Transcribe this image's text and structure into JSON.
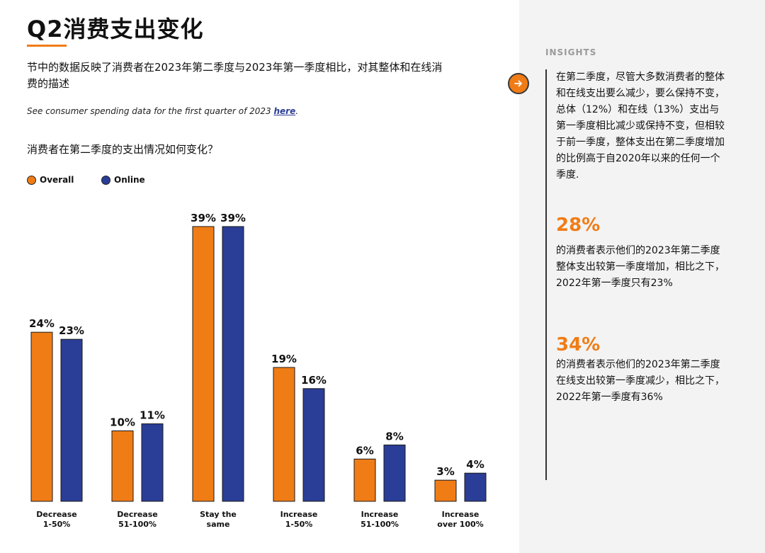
{
  "page": {
    "title": "Q2消费支出变化",
    "intro": "节中的数据反映了消费者在2023年第二季度与2023年第一季度相比，对其整体和在线消费的描述",
    "note_text": "See consumer spending data for the first quarter of 2023 ",
    "note_link": "here",
    "note_end": ".",
    "question": "消费者在第二季度的支出情况如何变化？"
  },
  "colors": {
    "overall": "#f07c16",
    "online": "#2a3d97",
    "accent": "#f07c16"
  },
  "chart_data": {
    "type": "bar",
    "categories": [
      [
        "Decrease",
        "1-50%"
      ],
      [
        "Decrease",
        "51-100%"
      ],
      [
        "Stay the",
        "same"
      ],
      [
        "Increase",
        "1-50%"
      ],
      [
        "Increase",
        "51-100%"
      ],
      [
        "Increase",
        "over 100%"
      ]
    ],
    "series": [
      {
        "name": "Overall",
        "values": [
          24,
          10,
          39,
          19,
          6,
          3
        ]
      },
      {
        "name": "Online",
        "values": [
          23,
          11,
          39,
          16,
          8,
          4
        ]
      }
    ],
    "value_suffix": "%",
    "ylim": [
      0,
      40
    ],
    "grid": false,
    "legend": "top-left"
  },
  "sidebar": {
    "label": "INSIGHTS",
    "arrow_icon": "arrow-right-icon",
    "paragraph": "在第二季度，尽管大多数消费者的整体和在线支出要么减少，要么保持不变，总体（12%）和在线（13%）支出与第一季度相比减少或保持不变，但相较于前一季度，整体支出在第二季度增加的比例高于自2020年以来的任何一个季度.",
    "stat1": "28%",
    "stat1_text": "的消费者表示他们的2023年第二季度整体支出较第一季度增加，相比之下，2022年第一季度只有23%",
    "stat2": "34%",
    "stat2_text": "的消费者表示他们的2023年第二季度在线支出较第一季度减少，相比之下，2022年第一季度有36%"
  }
}
